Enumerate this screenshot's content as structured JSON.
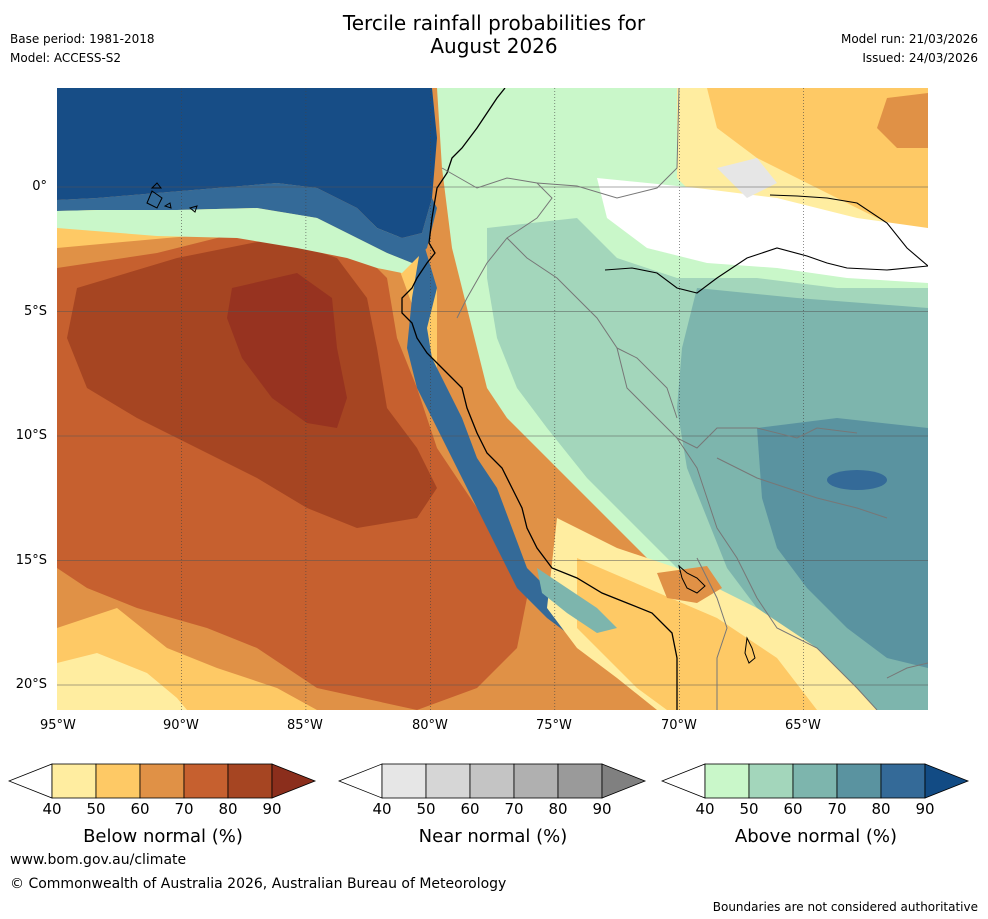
{
  "title": {
    "line1": "Tercile rainfall probabilities for",
    "line2": "August 2026"
  },
  "meta": {
    "base_period": "Base period: 1981-2018",
    "model": "Model: ACCESS-S2",
    "model_run": "Model run: 21/03/2026",
    "issued": "Issued: 24/03/2026"
  },
  "axes": {
    "lon_labels": [
      "95°W",
      "90°W",
      "85°W",
      "80°W",
      "75°W",
      "70°W",
      "65°W"
    ],
    "lat_labels": [
      "0°",
      "5°S",
      "10°S",
      "15°S",
      "20°S"
    ]
  },
  "colorbars": [
    {
      "name": "below",
      "label": "Below normal (%)",
      "ticks": [
        "40",
        "50",
        "60",
        "70",
        "80",
        "90"
      ],
      "colors": [
        "#ffffff",
        "#ffeda0",
        "#fec965",
        "#e09146",
        "#c6602f",
        "#a64522",
        "#8b2e1c"
      ]
    },
    {
      "name": "near",
      "label": "Near normal (%)",
      "ticks": [
        "40",
        "50",
        "60",
        "70",
        "80",
        "90"
      ],
      "colors": [
        "#ffffff",
        "#e6e6e6",
        "#d6d6d6",
        "#c4c4c4",
        "#b0b0b0",
        "#9a9a9a",
        "#808080"
      ]
    },
    {
      "name": "above",
      "label": "Above normal (%)",
      "ticks": [
        "40",
        "50",
        "60",
        "70",
        "80",
        "90"
      ],
      "colors": [
        "#ffffff",
        "#c9f7c9",
        "#a3d6bb",
        "#7db5ad",
        "#5a93a0",
        "#346a98",
        "#124b84"
      ]
    }
  ],
  "map_colors": {
    "deep_blue": "#174d86",
    "blue": "#346a98",
    "teal_dark": "#5a93a0",
    "teal": "#7db5ad",
    "green_mid": "#a3d6bb",
    "green_light": "#c9f7c9",
    "yellow": "#ffeda0",
    "orange_light": "#fec965",
    "orange": "#e09146",
    "brown": "#c6602f",
    "dark_brown": "#a64522",
    "darkest": "#973320",
    "grey": "#e6e6e6",
    "white": "#ffffff"
  },
  "footer": {
    "url": "www.bom.gov.au/climate",
    "copyright": "© Commonwealth of Australia 2026, Australian Bureau of Meteorology",
    "disclaimer": "Boundaries are not considered authoritative"
  }
}
